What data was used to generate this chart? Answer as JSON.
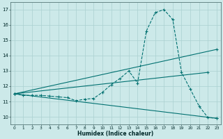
{
  "xlabel": "Humidex (Indice chaleur)",
  "xlim": [
    -0.5,
    23.5
  ],
  "ylim": [
    9.5,
    17.5
  ],
  "yticks": [
    10,
    11,
    12,
    13,
    14,
    15,
    16,
    17
  ],
  "xtick_labels": [
    "0",
    "1",
    "2",
    "3",
    "4",
    "5",
    "6",
    "7",
    "8",
    "9",
    "10",
    "11",
    "12",
    "13",
    "14",
    "15",
    "16",
    "17",
    "18",
    "19",
    "20",
    "21",
    "22",
    "23"
  ],
  "xticks": [
    0,
    1,
    2,
    3,
    4,
    5,
    6,
    7,
    8,
    9,
    10,
    11,
    12,
    13,
    14,
    15,
    16,
    17,
    18,
    19,
    20,
    21,
    22,
    23
  ],
  "bg_color": "#cce9e9",
  "grid_color": "#aad0d0",
  "line_color": "#007070",
  "main_x": [
    0,
    1,
    2,
    3,
    4,
    5,
    6,
    7,
    8,
    9,
    10,
    11,
    12,
    13,
    14,
    15,
    16,
    17,
    18,
    19,
    20,
    21,
    22,
    23
  ],
  "main_y": [
    11.5,
    11.4,
    11.4,
    11.4,
    11.35,
    11.3,
    11.25,
    11.05,
    11.15,
    11.2,
    11.6,
    12.1,
    12.5,
    13.0,
    12.2,
    15.6,
    16.8,
    17.0,
    16.35,
    12.9,
    11.8,
    10.7,
    9.95,
    9.9
  ],
  "line2_x": [
    0,
    23
  ],
  "line2_y": [
    11.5,
    14.4
  ],
  "line3_x": [
    0,
    22
  ],
  "line3_y": [
    11.5,
    12.9
  ],
  "line4_x": [
    0,
    23
  ],
  "line4_y": [
    11.5,
    9.9
  ]
}
